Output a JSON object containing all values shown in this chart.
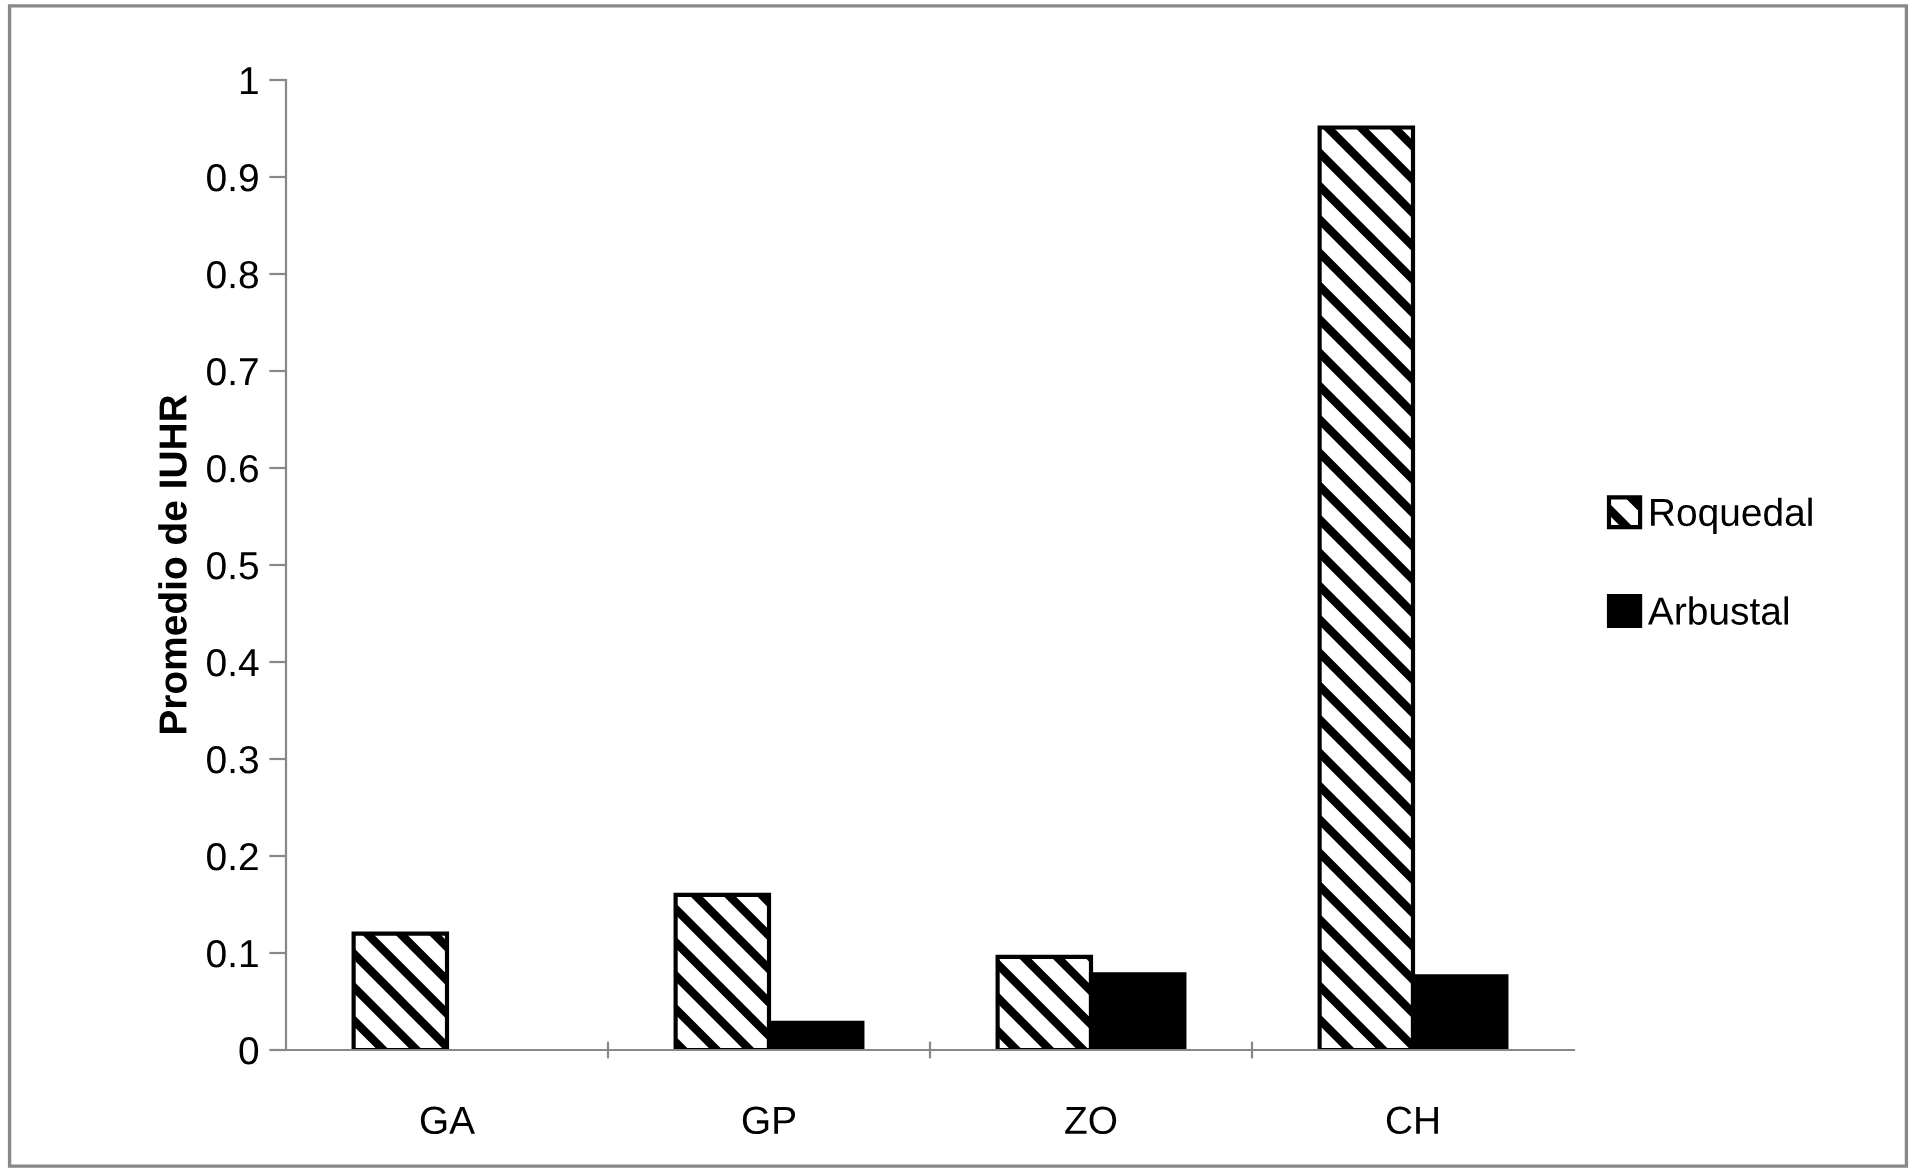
{
  "chart_data": {
    "type": "bar",
    "ylabel": "Promedio de IUHR",
    "categories": [
      "GA",
      "GP",
      "ZO",
      "CH"
    ],
    "series": [
      {
        "name": "Roquedal",
        "color": "#000000",
        "values": [
          0.12,
          0.16,
          0.096,
          0.951
        ]
      },
      {
        "name": "Arbustal",
        "color": "#000000",
        "values": [
          null,
          0.028,
          0.078,
          0.076
        ]
      }
    ],
    "ylim": [
      0,
      1
    ],
    "yticks": [
      0,
      {
        "value": 0.1,
        "label": "0.1"
      },
      {
        "value": 0.2,
        "label": "0.2"
      },
      {
        "value": 0.3,
        "label": "0.3"
      },
      {
        "value": 0.4,
        "label": "0.4"
      },
      {
        "value": 0.5,
        "label": "0.5"
      },
      {
        "value": 0.6,
        "label": "0.6"
      },
      {
        "value": 0.7,
        "label": "0.7"
      },
      {
        "value": 0.8,
        "label": "0.8"
      },
      {
        "value": 0.9,
        "label": "0.9"
      },
      1
    ],
    "grid": false,
    "legend": "right"
  }
}
